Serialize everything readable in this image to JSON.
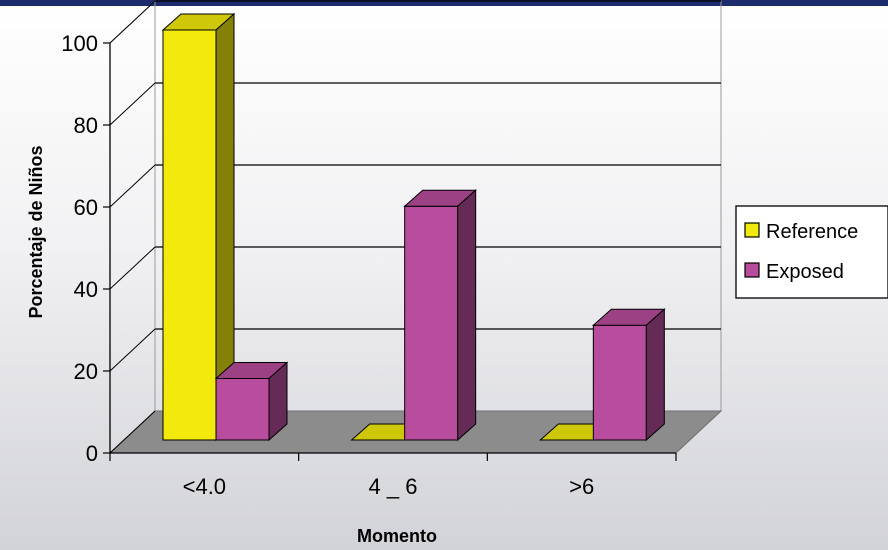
{
  "chart_data": {
    "type": "bar",
    "categories": [
      "<4.0",
      "4 _ 6",
      ">6"
    ],
    "series": [
      {
        "name": "Reference",
        "values": [
          100,
          0,
          0
        ]
      },
      {
        "name": "Exposed",
        "values": [
          15,
          57,
          28
        ]
      }
    ],
    "xlabel": "Momento",
    "ylabel": "Porcentaje de Niños",
    "yticks": [
      "0",
      "20",
      "40",
      "60",
      "80",
      "100"
    ],
    "ylim": [
      0,
      100
    ],
    "grid": true,
    "style": "3d-column",
    "legend_position": "right"
  },
  "colors": {
    "Reference": "#f2ea0c",
    "Exposed": "#b94d9d",
    "frame_bar": "#1c2b6b"
  }
}
